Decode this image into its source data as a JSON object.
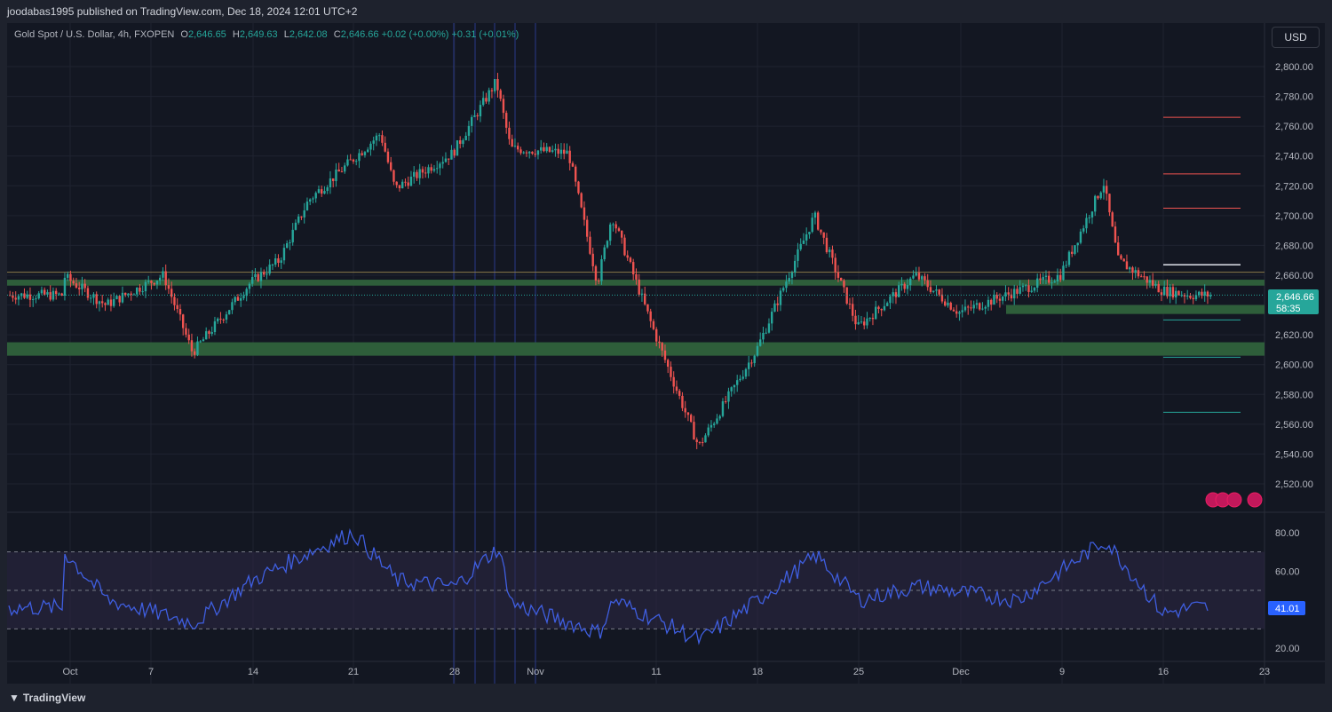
{
  "header": {
    "published": "joodabas1995 published on TradingView.com, Dec 18, 2024 12:01 UTC+2"
  },
  "symbol": {
    "name": "Gold Spot / U.S. Dollar, 4h, FXOPEN",
    "o_label": "O",
    "o": "2,646.65",
    "h_label": "H",
    "h": "2,649.63",
    "l_label": "L",
    "l": "2,642.08",
    "c_label": "C",
    "c": "2,646.66",
    "change": "+0.02 (+0.00%)",
    "change2": "+0.31 (+0.01%)"
  },
  "currency": "USD",
  "price_axis": {
    "ticks": [
      "2,800.00",
      "2,780.00",
      "2,760.00",
      "2,740.00",
      "2,720.00",
      "2,700.00",
      "2,680.00",
      "2,660.00",
      "2,640.00",
      "2,620.00",
      "2,600.00",
      "2,580.00",
      "2,560.00",
      "2,540.00",
      "2,520.00"
    ],
    "current_price": "2,646.66",
    "countdown": "58:35"
  },
  "rsi_axis": {
    "ticks": [
      "80.00",
      "60.00",
      "20.00"
    ],
    "current": "41.01"
  },
  "time_axis": [
    "Oct",
    "7",
    "14",
    "21",
    "28",
    "Nov",
    "11",
    "18",
    "25",
    "Dec",
    "9",
    "16",
    "23"
  ],
  "brand": {
    "name": "TradingView"
  },
  "colors": {
    "up": "#26a69a",
    "down": "#ef5350",
    "zone": "#2e5e3a",
    "rsi_line": "#3f5ee0",
    "rsi_band": "#2b2642",
    "bg": "#131722"
  },
  "chart_data": {
    "type": "candlestick",
    "title": "Gold Spot / U.S. Dollar, 4h, FXOPEN",
    "ylim": [
      2505,
      2815
    ],
    "key_points": [
      {
        "x": "Oct 1",
        "y": 2660
      },
      {
        "x": "Oct 4",
        "y": 2640
      },
      {
        "x": "Oct 8",
        "y": 2660
      },
      {
        "x": "Oct 10",
        "y": 2608
      },
      {
        "x": "Oct 14",
        "y": 2655
      },
      {
        "x": "Oct 16",
        "y": 2670
      },
      {
        "x": "Oct 18",
        "y": 2710
      },
      {
        "x": "Oct 23",
        "y": 2755
      },
      {
        "x": "Oct 24",
        "y": 2718
      },
      {
        "x": "Oct 28",
        "y": 2742
      },
      {
        "x": "Oct 31",
        "y": 2790
      },
      {
        "x": "Nov 1",
        "y": 2745
      },
      {
        "x": "Nov 5",
        "y": 2742
      },
      {
        "x": "Nov 7",
        "y": 2655
      },
      {
        "x": "Nov 8",
        "y": 2700
      },
      {
        "x": "Nov 11",
        "y": 2620
      },
      {
        "x": "Nov 14",
        "y": 2545
      },
      {
        "x": "Nov 18",
        "y": 2610
      },
      {
        "x": "Nov 22",
        "y": 2700
      },
      {
        "x": "Nov 25",
        "y": 2625
      },
      {
        "x": "Nov 29",
        "y": 2660
      },
      {
        "x": "Dec 2",
        "y": 2635
      },
      {
        "x": "Dec 9",
        "y": 2660
      },
      {
        "x": "Dec 12",
        "y": 2722
      },
      {
        "x": "Dec 13",
        "y": 2670
      },
      {
        "x": "Dec 16",
        "y": 2650
      },
      {
        "x": "Dec 18",
        "y": 2646.66
      }
    ],
    "levels_red": [
      2766,
      2728,
      2705
    ],
    "level_white": 2667,
    "levels_green": [
      2630,
      2605,
      2568
    ],
    "zones": [
      [
        2653,
        2657
      ],
      [
        2606,
        2615
      ],
      [
        2634,
        2640
      ]
    ],
    "rsi": {
      "ylim": [
        15,
        88
      ],
      "bands": [
        30,
        50,
        70
      ],
      "key_points": [
        {
          "x": "Oct 1",
          "y": 70
        },
        {
          "x": "Oct 4",
          "y": 45
        },
        {
          "x": "Oct 10",
          "y": 33
        },
        {
          "x": "Oct 14",
          "y": 55
        },
        {
          "x": "Oct 18",
          "y": 70
        },
        {
          "x": "Oct 21",
          "y": 80
        },
        {
          "x": "Oct 24",
          "y": 55
        },
        {
          "x": "Oct 28",
          "y": 52
        },
        {
          "x": "Oct 31",
          "y": 72
        },
        {
          "x": "Nov 1",
          "y": 43
        },
        {
          "x": "Nov 7",
          "y": 28
        },
        {
          "x": "Nov 8",
          "y": 45
        },
        {
          "x": "Nov 14",
          "y": 24
        },
        {
          "x": "Nov 18",
          "y": 45
        },
        {
          "x": "Nov 22",
          "y": 68
        },
        {
          "x": "Nov 25",
          "y": 45
        },
        {
          "x": "Nov 29",
          "y": 52
        },
        {
          "x": "Dec 6",
          "y": 45
        },
        {
          "x": "Dec 12",
          "y": 76
        },
        {
          "x": "Dec 16",
          "y": 38
        },
        {
          "x": "Dec 18",
          "y": 41.01
        }
      ]
    }
  }
}
